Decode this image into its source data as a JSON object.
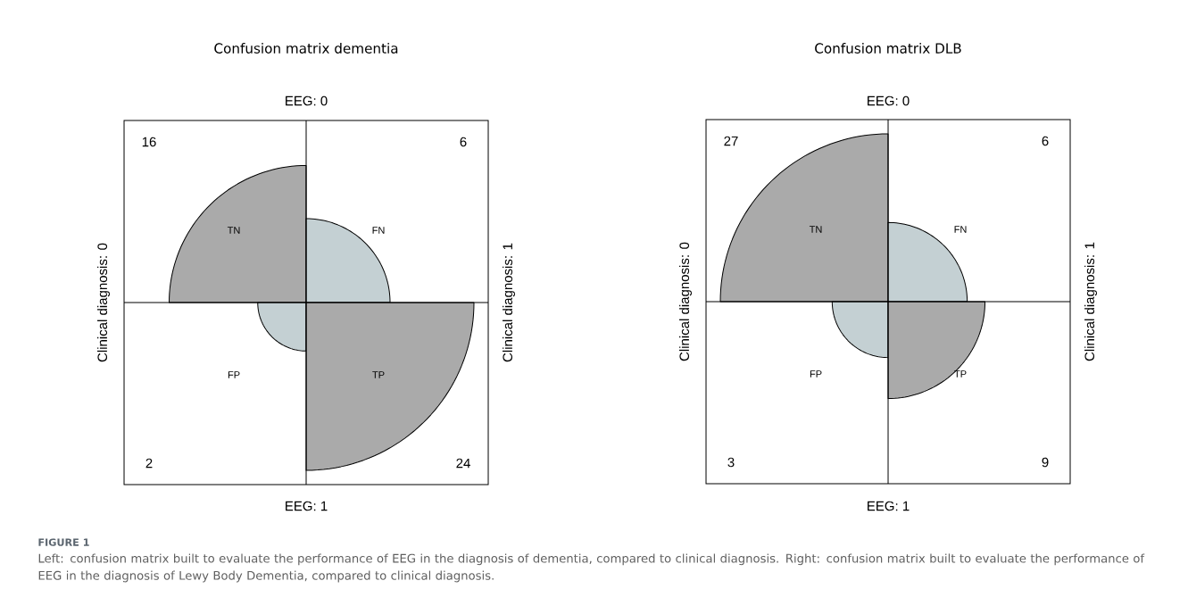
{
  "chart_data": [
    {
      "type": "other",
      "title": "Confusion matrix dementia",
      "x2label": "EEG: 0",
      "xlabel": "EEG: 1",
      "ylabel": "Clinical diagnosis: 0",
      "y2label": "Clinical diagnosis: 1",
      "categories": [
        "TN",
        "FN",
        "FP",
        "TP"
      ],
      "values": [
        16,
        6,
        2,
        24
      ],
      "colors": [
        "#aaaaaa",
        "#c4d0d3",
        "#c4d0d3",
        "#aaaaaa"
      ],
      "data_labels": true,
      "annotations": [
        "FIGURE 1",
        "Left: confusion matrix built to evaluate the performance of EEG in the diagnosis of dementia, compared to clinical diagnosis. Right: confusion matrix built to evaluate the performance of EEG in the diagnosis of Lewy Body Dementia, compared to clinical diagnosis."
      ]
    },
    {
      "type": "other",
      "title": "Confusion matrix DLB",
      "x2label": "EEG: 0",
      "xlabel": "EEG: 1",
      "ylabel": "Clinical diagnosis: 0",
      "y2label": "Clinical diagnosis: 1",
      "categories": [
        "TN",
        "FN",
        "FP",
        "TP"
      ],
      "values": [
        27,
        6,
        3,
        9
      ],
      "colors": [
        "#aaaaaa",
        "#c4d0d3",
        "#c4d0d3",
        "#aaaaaa"
      ],
      "data_labels": true
    }
  ]
}
